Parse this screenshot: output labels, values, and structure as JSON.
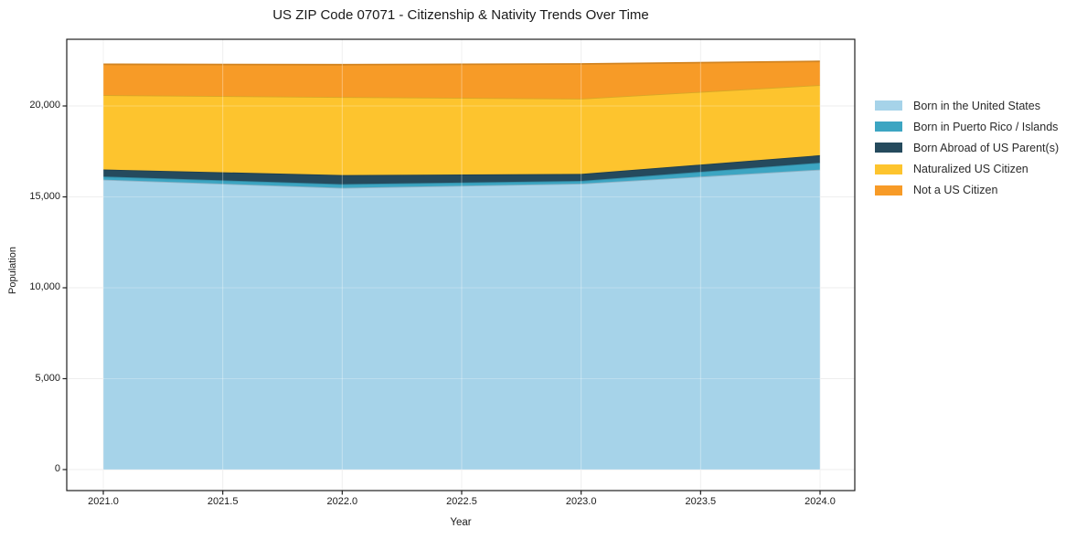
{
  "chart_data": {
    "type": "area",
    "stacked": true,
    "title": "US ZIP Code 07071 - Citizenship & Nativity Trends Over Time",
    "xlabel": "Year",
    "ylabel": "Population",
    "x": [
      2021,
      2022,
      2023,
      2024
    ],
    "series": [
      {
        "name": "Born in the United States",
        "color": "#a6d3e9",
        "values": [
          15950,
          15500,
          15730,
          16500
        ]
      },
      {
        "name": "Born in Puerto Rico / Islands",
        "color": "#3ca5c2",
        "values": [
          170,
          200,
          150,
          380
        ]
      },
      {
        "name": "Born Abroad of US Parent(s)",
        "color": "#254a5d",
        "values": [
          390,
          500,
          380,
          410
        ]
      },
      {
        "name": "Naturalized US Citizen",
        "color": "#fdc42e",
        "values": [
          4090,
          4290,
          4140,
          3860
        ]
      },
      {
        "name": "Not a US Citizen",
        "color": "#f79b27",
        "values": [
          1690,
          1780,
          1910,
          1300
        ]
      }
    ],
    "totals": [
      22290,
      22270,
      22310,
      22450
    ],
    "x_tick_labels": [
      "2021.0",
      "2021.5",
      "2022.0",
      "2022.5",
      "2023.0",
      "2023.5",
      "2024.0"
    ],
    "x_tick_values": [
      2021.0,
      2021.5,
      2022.0,
      2022.5,
      2023.0,
      2023.5,
      2024.0
    ],
    "y_tick_labels": [
      "0",
      "5,000",
      "10,000",
      "15,000",
      "20,000"
    ],
    "y_tick_values": [
      0,
      5000,
      10000,
      15000,
      20000
    ],
    "xlim": [
      2020.85,
      2024.15
    ],
    "ylim": [
      -1122,
      23572
    ],
    "grid": true,
    "legend_position": "right-outside",
    "colors": {
      "grid": "#e8e8e8",
      "spine": "#1f1f1f",
      "background": "#ffffff"
    }
  }
}
